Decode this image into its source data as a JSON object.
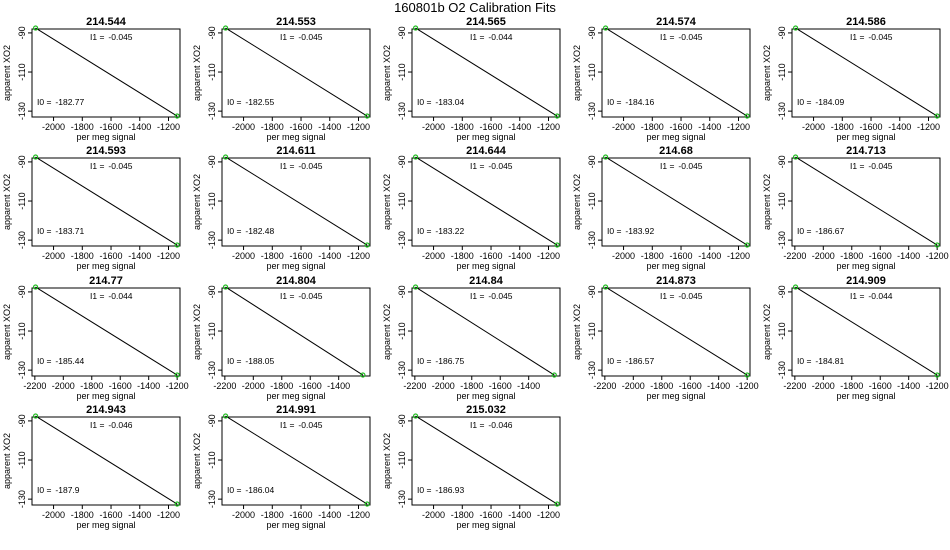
{
  "title": "160801b   O2 Calibration Fits",
  "colors": {
    "line": "#000000",
    "point": "#22bb22"
  },
  "chart_data": [
    {
      "type": "line",
      "title": "214.544",
      "xlabel": "per meg signal",
      "ylabel": "apparent XO2",
      "xlim": [
        -2150,
        -1120
      ],
      "ylim": [
        -133,
        -88
      ],
      "xticks": [
        -2000,
        -1800,
        -1600,
        -1400,
        -1200
      ],
      "yticks": [
        -90,
        -110,
        -130
      ],
      "i1_label": "I1 =",
      "i1": "-0.045",
      "i0_label": "I0 =",
      "i0": "-182.77",
      "x": [
        -2125,
        -1140
      ],
      "y": [
        -87.5,
        -132.5
      ]
    },
    {
      "type": "line",
      "title": "214.553",
      "xlabel": "per meg signal",
      "ylabel": "apparent XO2",
      "xlim": [
        -2150,
        -1120
      ],
      "ylim": [
        -133,
        -88
      ],
      "xticks": [
        -2000,
        -1800,
        -1600,
        -1400,
        -1200
      ],
      "yticks": [
        -90,
        -110,
        -130
      ],
      "i1_label": "I1 =",
      "i1": "-0.045",
      "i0_label": "I0 =",
      "i0": "-182.55",
      "x": [
        -2125,
        -1140
      ],
      "y": [
        -87.5,
        -132.5
      ]
    },
    {
      "type": "line",
      "title": "214.565",
      "xlabel": "per meg signal",
      "ylabel": "apparent XO2",
      "xlim": [
        -2150,
        -1120
      ],
      "ylim": [
        -133,
        -88
      ],
      "xticks": [
        -2000,
        -1800,
        -1600,
        -1400,
        -1200
      ],
      "yticks": [
        -90,
        -110,
        -130
      ],
      "i1_label": "I1 =",
      "i1": "-0.044",
      "i0_label": "I0 =",
      "i0": "-183.04",
      "x": [
        -2125,
        -1140
      ],
      "y": [
        -87.5,
        -132.5
      ]
    },
    {
      "type": "line",
      "title": "214.574",
      "xlabel": "per meg signal",
      "ylabel": "apparent XO2",
      "xlim": [
        -2150,
        -1120
      ],
      "ylim": [
        -133,
        -88
      ],
      "xticks": [
        -2000,
        -1800,
        -1600,
        -1400,
        -1200
      ],
      "yticks": [
        -90,
        -110,
        -130
      ],
      "i1_label": "I1 =",
      "i1": "-0.045",
      "i0_label": "I0 =",
      "i0": "-184.16",
      "x": [
        -2125,
        -1140
      ],
      "y": [
        -87.5,
        -132.5
      ]
    },
    {
      "type": "line",
      "title": "214.586",
      "xlabel": "per meg signal",
      "ylabel": "apparent XO2",
      "xlim": [
        -2150,
        -1120
      ],
      "ylim": [
        -133,
        -88
      ],
      "xticks": [
        -2000,
        -1800,
        -1600,
        -1400,
        -1200
      ],
      "yticks": [
        -90,
        -110,
        -130
      ],
      "i1_label": "I1 =",
      "i1": "-0.045",
      "i0_label": "I0 =",
      "i0": "-184.09",
      "x": [
        -2125,
        -1140
      ],
      "y": [
        -87.5,
        -132.5
      ]
    },
    {
      "type": "line",
      "title": "214.593",
      "xlabel": "per meg signal",
      "ylabel": "apparent XO2",
      "xlim": [
        -2150,
        -1120
      ],
      "ylim": [
        -133,
        -88
      ],
      "xticks": [
        -2000,
        -1800,
        -1600,
        -1400,
        -1200
      ],
      "yticks": [
        -90,
        -110,
        -130
      ],
      "i1_label": "I1 =",
      "i1": "-0.045",
      "i0_label": "I0 =",
      "i0": "-183.71",
      "x": [
        -2125,
        -1140
      ],
      "y": [
        -87.5,
        -132.5
      ]
    },
    {
      "type": "line",
      "title": "214.611",
      "xlabel": "per meg signal",
      "ylabel": "apparent XO2",
      "xlim": [
        -2150,
        -1120
      ],
      "ylim": [
        -133,
        -88
      ],
      "xticks": [
        -2000,
        -1800,
        -1600,
        -1400,
        -1200
      ],
      "yticks": [
        -90,
        -110,
        -130
      ],
      "i1_label": "I1 =",
      "i1": "-0.045",
      "i0_label": "I0 =",
      "i0": "-182.48",
      "x": [
        -2125,
        -1140
      ],
      "y": [
        -87.5,
        -132.5
      ]
    },
    {
      "type": "line",
      "title": "214.644",
      "xlabel": "per meg signal",
      "ylabel": "apparent XO2",
      "xlim": [
        -2150,
        -1120
      ],
      "ylim": [
        -133,
        -88
      ],
      "xticks": [
        -2000,
        -1800,
        -1600,
        -1400,
        -1200
      ],
      "yticks": [
        -90,
        -110,
        -130
      ],
      "i1_label": "I1 =",
      "i1": "-0.045",
      "i0_label": "I0 =",
      "i0": "-183.22",
      "x": [
        -2125,
        -1140
      ],
      "y": [
        -87.5,
        -132.5
      ]
    },
    {
      "type": "line",
      "title": "214.68",
      "xlabel": "per meg signal",
      "ylabel": "apparent XO2",
      "xlim": [
        -2150,
        -1120
      ],
      "ylim": [
        -133,
        -88
      ],
      "xticks": [
        -2000,
        -1800,
        -1600,
        -1400,
        -1200
      ],
      "yticks": [
        -90,
        -110,
        -130
      ],
      "i1_label": "I1 =",
      "i1": "-0.045",
      "i0_label": "I0 =",
      "i0": "-183.92",
      "x": [
        -2125,
        -1140
      ],
      "y": [
        -87.5,
        -132.5
      ]
    },
    {
      "type": "line",
      "title": "214.713",
      "xlabel": "per meg signal",
      "ylabel": "apparent XO2",
      "xlim": [
        -2220,
        -1180
      ],
      "ylim": [
        -133,
        -88
      ],
      "xticks": [
        -2200,
        -2000,
        -1800,
        -1600,
        -1400,
        -1200
      ],
      "yticks": [
        -90,
        -110,
        -130
      ],
      "i1_label": "I1 =",
      "i1": "-0.045",
      "i0_label": "I0 =",
      "i0": "-186.67",
      "x": [
        -2195,
        -1200
      ],
      "y": [
        -87.5,
        -132.5
      ]
    },
    {
      "type": "line",
      "title": "214.77",
      "xlabel": "per meg signal",
      "ylabel": "apparent XO2",
      "xlim": [
        -2220,
        -1180
      ],
      "ylim": [
        -133,
        -88
      ],
      "xticks": [
        -2200,
        -2000,
        -1800,
        -1600,
        -1400,
        -1200
      ],
      "yticks": [
        -90,
        -110,
        -130
      ],
      "i1_label": "I1 =",
      "i1": "-0.044",
      "i0_label": "I0 =",
      "i0": "-185.44",
      "x": [
        -2195,
        -1200
      ],
      "y": [
        -87.5,
        -132.5
      ]
    },
    {
      "type": "line",
      "title": "214.804",
      "xlabel": "per meg signal",
      "ylabel": "apparent XO2",
      "xlim": [
        -2220,
        -1180
      ],
      "ylim": [
        -133,
        -88
      ],
      "xticks": [
        -2200,
        -2000,
        -1800,
        -1600,
        -1400
      ],
      "yticks": [
        -90,
        -110,
        -130
      ],
      "i1_label": "I1 =",
      "i1": "-0.045",
      "i0_label": "I0 =",
      "i0": "-188.05",
      "x": [
        -2195,
        -1230
      ],
      "y": [
        -87.5,
        -132.5
      ]
    },
    {
      "type": "line",
      "title": "214.84",
      "xlabel": "per meg signal",
      "ylabel": "apparent XO2",
      "xlim": [
        -2220,
        -1180
      ],
      "ylim": [
        -133,
        -88
      ],
      "xticks": [
        -2200,
        -2000,
        -1800,
        -1600,
        -1400
      ],
      "yticks": [
        -90,
        -110,
        -130
      ],
      "i1_label": "I1 =",
      "i1": "-0.045",
      "i0_label": "I0 =",
      "i0": "-186.75",
      "x": [
        -2195,
        -1220
      ],
      "y": [
        -87.5,
        -132.5
      ]
    },
    {
      "type": "line",
      "title": "214.873",
      "xlabel": "per meg signal",
      "ylabel": "apparent XO2",
      "xlim": [
        -2220,
        -1180
      ],
      "ylim": [
        -133,
        -88
      ],
      "xticks": [
        -2200,
        -2000,
        -1800,
        -1600,
        -1400,
        -1200
      ],
      "yticks": [
        -90,
        -110,
        -130
      ],
      "i1_label": "I1 =",
      "i1": "-0.045",
      "i0_label": "I0 =",
      "i0": "-186.57",
      "x": [
        -2195,
        -1200
      ],
      "y": [
        -87.5,
        -132.5
      ]
    },
    {
      "type": "line",
      "title": "214.909",
      "xlabel": "per meg signal",
      "ylabel": "apparent XO2",
      "xlim": [
        -2220,
        -1180
      ],
      "ylim": [
        -133,
        -88
      ],
      "xticks": [
        -2200,
        -2000,
        -1800,
        -1600,
        -1400,
        -1200
      ],
      "yticks": [
        -90,
        -110,
        -130
      ],
      "i1_label": "I1 =",
      "i1": "-0.044",
      "i0_label": "I0 =",
      "i0": "-184.81",
      "x": [
        -2195,
        -1200
      ],
      "y": [
        -87.5,
        -132.5
      ]
    },
    {
      "type": "line",
      "title": "214.943",
      "xlabel": "per meg signal",
      "ylabel": "apparent XO2",
      "xlim": [
        -2150,
        -1120
      ],
      "ylim": [
        -133,
        -88
      ],
      "xticks": [
        -2000,
        -1800,
        -1600,
        -1400,
        -1200
      ],
      "yticks": [
        -90,
        -110,
        -130
      ],
      "i1_label": "I1 =",
      "i1": "-0.046",
      "i0_label": "I0 =",
      "i0": "-187.9",
      "x": [
        -2125,
        -1140
      ],
      "y": [
        -87.5,
        -132.5
      ]
    },
    {
      "type": "line",
      "title": "214.991",
      "xlabel": "per meg signal",
      "ylabel": "apparent XO2",
      "xlim": [
        -2150,
        -1120
      ],
      "ylim": [
        -133,
        -88
      ],
      "xticks": [
        -2000,
        -1800,
        -1600,
        -1400,
        -1200
      ],
      "yticks": [
        -90,
        -110,
        -130
      ],
      "i1_label": "I1 =",
      "i1": "-0.045",
      "i0_label": "I0 =",
      "i0": "-186.04",
      "x": [
        -2125,
        -1140
      ],
      "y": [
        -87.5,
        -132.5
      ]
    },
    {
      "type": "line",
      "title": "215.032",
      "xlabel": "per meg signal",
      "ylabel": "apparent XO2",
      "xlim": [
        -2150,
        -1120
      ],
      "ylim": [
        -133,
        -88
      ],
      "xticks": [
        -2000,
        -1800,
        -1600,
        -1400,
        -1200
      ],
      "yticks": [
        -90,
        -110,
        -130
      ],
      "i1_label": "I1 =",
      "i1": "-0.046",
      "i0_label": "I0 =",
      "i0": "-186.93",
      "x": [
        -2125,
        -1140
      ],
      "y": [
        -87.5,
        -132.5
      ]
    }
  ]
}
